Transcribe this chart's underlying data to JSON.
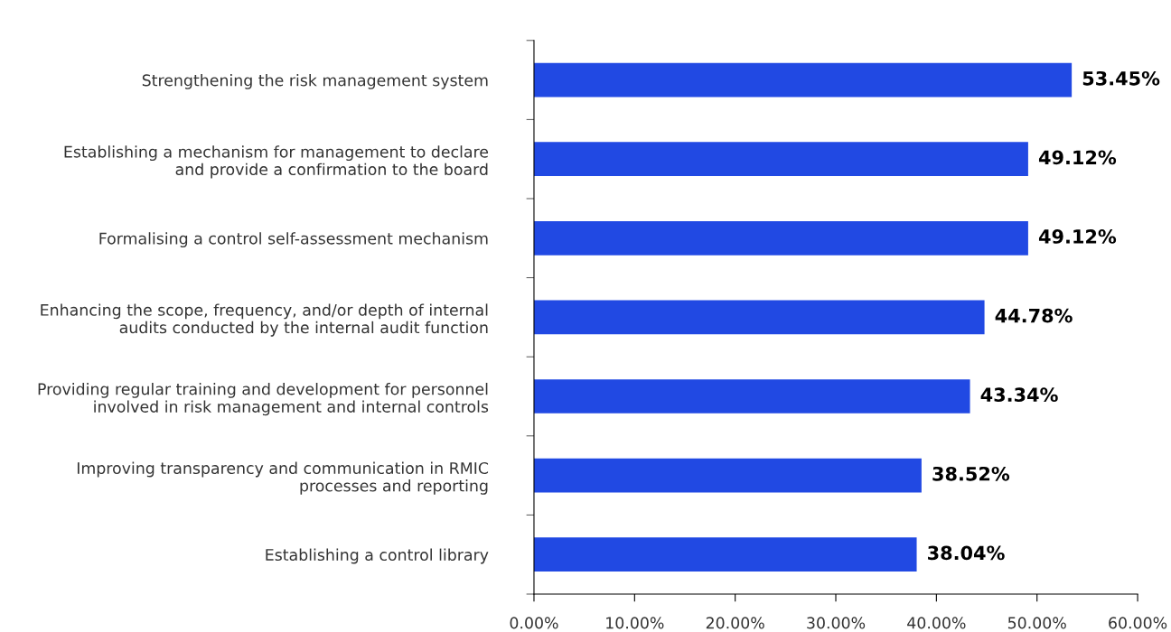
{
  "chart_data": {
    "type": "bar",
    "orientation": "horizontal",
    "categories": [
      "Strengthening the risk management system",
      "Establishing a mechanism for management to declare\nand provide a confirmation to the board",
      "Formalising a control self-assessment mechanism",
      "Enhancing the scope, frequency, and/or depth of internal\naudits conducted by the internal audit function",
      "Providing regular training and development for personnel\ninvolved in risk management and internal controls",
      "Improving transparency and communication in RMIC\nprocesses and reporting",
      "Establishing a control library"
    ],
    "values": [
      53.45,
      49.12,
      49.12,
      44.78,
      43.34,
      38.52,
      38.04
    ],
    "value_labels": [
      "53.45%",
      "49.12%",
      "49.12%",
      "44.78%",
      "43.34%",
      "38.52%",
      "38.04%"
    ],
    "color": "#2149e3",
    "xlim": [
      0,
      60
    ],
    "xticks": [
      {
        "value": 0,
        "label": "0.00%"
      },
      {
        "value": 10,
        "label": "10.00%"
      },
      {
        "value": 20,
        "label": "20.00%"
      },
      {
        "value": 30,
        "label": "30.00%"
      },
      {
        "value": 40,
        "label": "40.00%"
      },
      {
        "value": 50,
        "label": "50.00%"
      },
      {
        "value": 60,
        "label": "60.00%"
      }
    ],
    "grid": false,
    "legend": false
  }
}
